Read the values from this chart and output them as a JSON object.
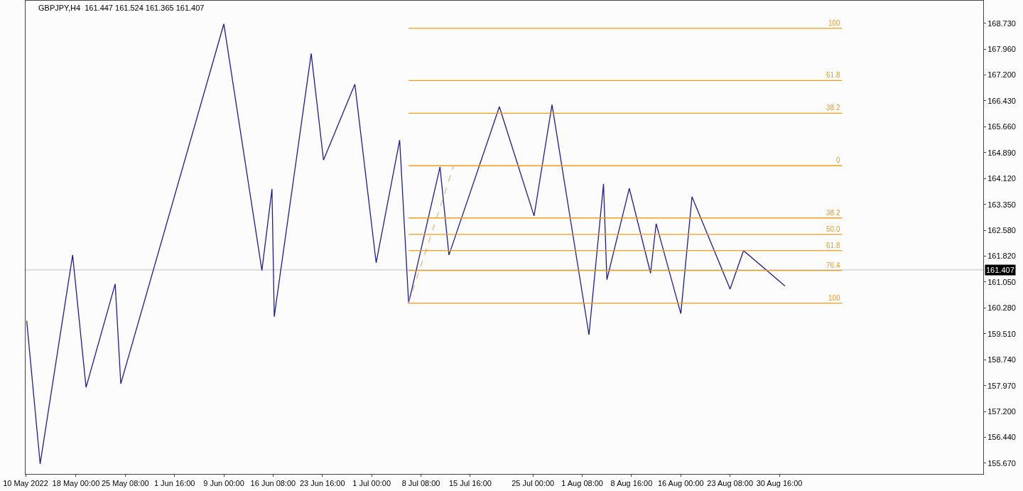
{
  "chart_data": {
    "type": "line",
    "title": "GBPJPY,H4  161.447 161.524 161.365 161.407",
    "xlim": [
      "2022-05-10T12:00",
      "2022-09-30T00:00"
    ],
    "ylim": [
      155.35,
      169.4
    ],
    "xticks": [
      {
        "value": "2022-05-10T12:00",
        "label": "10 May 2022"
      },
      {
        "value": "2022-05-18T00:00",
        "label": "18 May 00:00"
      },
      {
        "value": "2022-05-25T08:00",
        "label": "25 May 08:00"
      },
      {
        "value": "2022-06-01T16:00",
        "label": "1 Jun 16:00"
      },
      {
        "value": "2022-06-09T00:00",
        "label": "9 Jun 00:00"
      },
      {
        "value": "2022-06-16T08:00",
        "label": "16 Jun 08:00"
      },
      {
        "value": "2022-06-23T16:00",
        "label": "23 Jun 16:00"
      },
      {
        "value": "2022-07-01T00:00",
        "label": "1 Jul 00:00"
      },
      {
        "value": "2022-07-08T08:00",
        "label": "8 Jul 08:00"
      },
      {
        "value": "2022-07-15T16:00",
        "label": "15 Jul 16:00"
      },
      {
        "value": "2022-07-25T00:00",
        "label": "25 Jul 00:00"
      },
      {
        "value": "2022-08-01T08:00",
        "label": "1 Aug 08:00"
      },
      {
        "value": "2022-08-08T16:00",
        "label": "8 Aug 16:00"
      },
      {
        "value": "2022-08-16T00:00",
        "label": "16 Aug 00:00"
      },
      {
        "value": "2022-08-23T08:00",
        "label": "23 Aug 08:00"
      },
      {
        "value": "2022-08-30T16:00",
        "label": "30 Aug 16:00"
      }
    ],
    "yticks": [
      {
        "value": 155.67,
        "label": "155.670"
      },
      {
        "value": 156.44,
        "label": "156.440"
      },
      {
        "value": 157.2,
        "label": "157.200"
      },
      {
        "value": 157.97,
        "label": "157.970"
      },
      {
        "value": 158.74,
        "label": "158.740"
      },
      {
        "value": 159.51,
        "label": "159.510"
      },
      {
        "value": 160.28,
        "label": "160.280"
      },
      {
        "value": 161.05,
        "label": "161.050"
      },
      {
        "value": 161.82,
        "label": "161.820"
      },
      {
        "value": 162.58,
        "label": "162.580"
      },
      {
        "value": 163.35,
        "label": "163.350"
      },
      {
        "value": 164.12,
        "label": "164.120"
      },
      {
        "value": 164.89,
        "label": "164.890"
      },
      {
        "value": 165.66,
        "label": "165.660"
      },
      {
        "value": 166.43,
        "label": "166.430"
      },
      {
        "value": 167.2,
        "label": "167.200"
      },
      {
        "value": 167.96,
        "label": "167.960"
      },
      {
        "value": 168.73,
        "label": "168.730"
      }
    ],
    "grid": false,
    "legend": false,
    "marker": "none",
    "ref_lines": [
      {
        "axis": "y",
        "value": 161.407,
        "label": "161.407",
        "color": "#c0c0c0"
      }
    ],
    "series": [
      {
        "color": "#1c1ca0",
        "line_style": "solid",
        "x": [
          "2022-05-10T16:00",
          "2022-05-12T16:00",
          "2022-05-17T12:00",
          "2022-05-19T12:00",
          "2022-05-23T20:00",
          "2022-05-24T16:00",
          "2022-06-09T00:00",
          "2022-06-14T16:00",
          "2022-06-16T04:00",
          "2022-06-16T12:00",
          "2022-06-22T00:00",
          "2022-06-23T20:00",
          "2022-06-28T12:00",
          "2022-07-01T16:00",
          "2022-07-05T04:00",
          "2022-07-06T12:00",
          "2022-07-11T04:00",
          "2022-07-12T12:00",
          "2022-07-20T00:00",
          "2022-07-25T04:00",
          "2022-07-27T20:00",
          "2022-08-02T08:00",
          "2022-08-04T12:00",
          "2022-08-05T00:00",
          "2022-08-08T08:00",
          "2022-08-11T12:00",
          "2022-08-12T08:00",
          "2022-08-16T00:00",
          "2022-08-17T16:00",
          "2022-08-23T08:00",
          "2022-08-25T08:00",
          "2022-08-31T12:00"
        ],
        "values": [
          159.9,
          155.65,
          161.85,
          157.92,
          160.99,
          158.03,
          168.71,
          161.39,
          163.81,
          160.02,
          167.83,
          164.67,
          166.92,
          161.62,
          165.26,
          160.42,
          164.46,
          161.85,
          166.25,
          163.01,
          166.31,
          159.48,
          163.96,
          161.12,
          163.83,
          161.31,
          162.78,
          160.11,
          163.58,
          160.84,
          161.98,
          160.93
        ]
      },
      {
        "color": "#e8b878",
        "line_style": "dashed",
        "x": [
          "2022-07-06T12:00",
          "2022-07-13T04:00"
        ],
        "values": [
          160.42,
          164.48
        ]
      },
      {
        "name": "100",
        "color": "#f39c1a",
        "line_style": "solid",
        "x": [
          "2022-07-06T12:00",
          "2022-09-09T00:00"
        ],
        "values": [
          168.58,
          168.58
        ]
      },
      {
        "name": "61.8",
        "color": "#f39c1a",
        "line_style": "solid",
        "x": [
          "2022-07-06T12:00",
          "2022-09-09T00:00"
        ],
        "values": [
          167.03,
          167.03
        ]
      },
      {
        "name": "38.2",
        "color": "#f39c1a",
        "line_style": "solid",
        "x": [
          "2022-07-06T12:00",
          "2022-09-09T00:00"
        ],
        "values": [
          166.06,
          166.06
        ]
      },
      {
        "name": "0",
        "color": "#f39c1a",
        "line_style": "solid",
        "x": [
          "2022-07-06T12:00",
          "2022-09-09T00:00"
        ],
        "values": [
          164.5,
          164.5
        ]
      },
      {
        "name": "38.2",
        "color": "#f39c1a",
        "line_style": "solid",
        "x": [
          "2022-07-06T12:00",
          "2022-09-09T00:00"
        ],
        "values": [
          162.95,
          162.95
        ]
      },
      {
        "name": "50.0",
        "color": "#f39c1a",
        "line_style": "solid",
        "x": [
          "2022-07-06T12:00",
          "2022-09-09T00:00"
        ],
        "values": [
          162.46,
          162.46
        ]
      },
      {
        "name": "61.8",
        "color": "#f39c1a",
        "line_style": "solid",
        "x": [
          "2022-07-06T12:00",
          "2022-09-09T00:00"
        ],
        "values": [
          161.98,
          161.98
        ]
      },
      {
        "name": "76.4",
        "color": "#f39c1a",
        "line_style": "solid",
        "x": [
          "2022-07-06T12:00",
          "2022-09-09T00:00"
        ],
        "values": [
          161.39,
          161.39
        ]
      },
      {
        "name": "100",
        "color": "#f39c1a",
        "line_style": "solid",
        "x": [
          "2022-07-06T12:00",
          "2022-09-09T00:00"
        ],
        "values": [
          160.42,
          160.42
        ]
      }
    ]
  }
}
